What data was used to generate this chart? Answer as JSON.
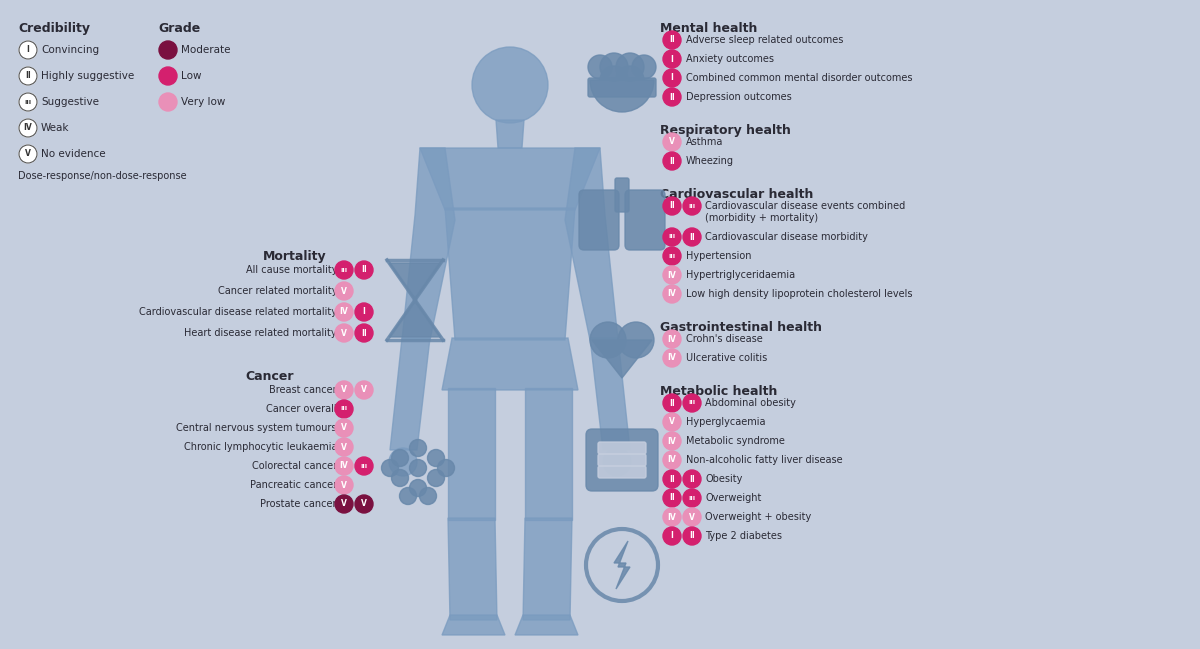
{
  "bg_color": "#c5cede",
  "text_color": "#2a2a35",
  "dark_pink": "#7a1040",
  "mid_pink": "#d4206e",
  "light_pink": "#e990b8",
  "body_blue": "#7a9bbf",
  "icon_blue": "#6888aa",
  "figsize": [
    12.0,
    6.49
  ],
  "dpi": 100,
  "credibility_items": [
    {
      "roman": "I",
      "label": "Convincing"
    },
    {
      "roman": "II",
      "label": "Highly suggestive"
    },
    {
      "roman": "III",
      "label": "Suggestive"
    },
    {
      "roman": "IV",
      "label": "Weak"
    },
    {
      "roman": "V",
      "label": "No evidence"
    }
  ],
  "grade_items": [
    {
      "color": "#7a1040",
      "label": "Moderate"
    },
    {
      "color": "#d4206e",
      "label": "Low"
    },
    {
      "color": "#e990b8",
      "label": "Very low"
    }
  ],
  "dose_response_label": "Dose-response/non-dose-response",
  "mortality_title": "Mortality",
  "mortality_items": [
    {
      "label": "All cause mortality",
      "b1": "III",
      "c1": "#d4206e",
      "b2": "II",
      "c2": "#d4206e"
    },
    {
      "label": "Cancer related mortality",
      "b1": "V",
      "c1": "#e990b8",
      "b2": null,
      "c2": null
    },
    {
      "label": "Cardiovascular disease related mortality",
      "b1": "IV",
      "c1": "#e990b8",
      "b2": "I",
      "c2": "#d4206e"
    },
    {
      "label": "Heart disease related mortality",
      "b1": "V",
      "c1": "#e990b8",
      "b2": "II",
      "c2": "#d4206e"
    }
  ],
  "cancer_title": "Cancer",
  "cancer_items": [
    {
      "label": "Breast cancer",
      "b1": "V",
      "c1": "#e990b8",
      "b2": "V",
      "c2": "#e990b8"
    },
    {
      "label": "Cancer overall",
      "b1": "III",
      "c1": "#d4206e",
      "b2": null,
      "c2": null
    },
    {
      "label": "Central nervous system tumours",
      "b1": "V",
      "c1": "#e990b8",
      "b2": null,
      "c2": null
    },
    {
      "label": "Chronic lymphocytic leukaemia",
      "b1": "V",
      "c1": "#e990b8",
      "b2": null,
      "c2": null
    },
    {
      "label": "Colorectal cancer",
      "b1": "IV",
      "c1": "#e990b8",
      "b2": "III",
      "c2": "#d4206e"
    },
    {
      "label": "Pancreatic cancer",
      "b1": "V",
      "c1": "#e990b8",
      "b2": null,
      "c2": null
    },
    {
      "label": "Prostate cancer",
      "b1": "V",
      "c1": "#7a1040",
      "b2": "V",
      "c2": "#7a1040"
    }
  ],
  "mental_title": "Mental health",
  "mental_items": [
    {
      "label": "Adverse sleep related outcomes",
      "b1": "II",
      "c1": "#d4206e",
      "b2": null,
      "c2": null
    },
    {
      "label": "Anxiety outcomes",
      "b1": "I",
      "c1": "#d4206e",
      "b2": null,
      "c2": null
    },
    {
      "label": "Combined common mental disorder outcomes",
      "b1": "I",
      "c1": "#d4206e",
      "b2": null,
      "c2": null
    },
    {
      "label": "Depression outcomes",
      "b1": "II",
      "c1": "#d4206e",
      "b2": null,
      "c2": null
    }
  ],
  "respiratory_title": "Respiratory health",
  "respiratory_items": [
    {
      "label": "Asthma",
      "b1": "V",
      "c1": "#e990b8",
      "b2": null,
      "c2": null
    },
    {
      "label": "Wheezing",
      "b1": "II",
      "c1": "#d4206e",
      "b2": null,
      "c2": null
    }
  ],
  "cardio_title": "Cardiovascular health",
  "cardio_items": [
    {
      "label": "Cardiovascular disease events combined\n(morbidity + mortality)",
      "b1": "II",
      "c1": "#d4206e",
      "b2": "III",
      "c2": "#d4206e"
    },
    {
      "label": "Cardiovascular disease morbidity",
      "b1": "III",
      "c1": "#d4206e",
      "b2": "II",
      "c2": "#d4206e"
    },
    {
      "label": "Hypertension",
      "b1": "III",
      "c1": "#d4206e",
      "b2": null,
      "c2": null
    },
    {
      "label": "Hypertriglyceridaemia",
      "b1": "IV",
      "c1": "#e990b8",
      "b2": null,
      "c2": null
    },
    {
      "label": "Low high density lipoprotein cholesterol levels",
      "b1": "IV",
      "c1": "#e990b8",
      "b2": null,
      "c2": null
    }
  ],
  "gastro_title": "Gastrointestinal health",
  "gastro_items": [
    {
      "label": "Crohn's disease",
      "b1": "IV",
      "c1": "#e990b8",
      "b2": null,
      "c2": null
    },
    {
      "label": "Ulcerative colitis",
      "b1": "IV",
      "c1": "#e990b8",
      "b2": null,
      "c2": null
    }
  ],
  "metabolic_title": "Metabolic health",
  "metabolic_items": [
    {
      "label": "Abdominal obesity",
      "b1": "II",
      "c1": "#d4206e",
      "b2": "III",
      "c2": "#d4206e"
    },
    {
      "label": "Hyperglycaemia",
      "b1": "V",
      "c1": "#e990b8",
      "b2": null,
      "c2": null
    },
    {
      "label": "Metabolic syndrome",
      "b1": "IV",
      "c1": "#e990b8",
      "b2": null,
      "c2": null
    },
    {
      "label": "Non-alcoholic fatty liver disease",
      "b1": "IV",
      "c1": "#e990b8",
      "b2": null,
      "c2": null
    },
    {
      "label": "Obesity",
      "b1": "II",
      "c1": "#d4206e",
      "b2": "II",
      "c2": "#d4206e"
    },
    {
      "label": "Overweight",
      "b1": "II",
      "c1": "#d4206e",
      "b2": "III",
      "c2": "#d4206e"
    },
    {
      "label": "Overweight + obesity",
      "b1": "IV",
      "c1": "#e990b8",
      "b2": "V",
      "c2": "#e990b8"
    },
    {
      "label": "Type 2 diabetes",
      "b1": "I",
      "c1": "#d4206e",
      "b2": "II",
      "c2": "#d4206e"
    }
  ]
}
